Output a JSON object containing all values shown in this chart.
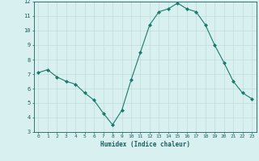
{
  "x": [
    0,
    1,
    2,
    3,
    4,
    5,
    6,
    7,
    8,
    9,
    10,
    11,
    12,
    13,
    14,
    15,
    16,
    17,
    18,
    19,
    20,
    21,
    22,
    23
  ],
  "y": [
    7.1,
    7.3,
    6.8,
    6.5,
    6.3,
    5.7,
    5.2,
    4.3,
    3.5,
    4.5,
    6.6,
    8.5,
    10.4,
    11.3,
    11.5,
    11.9,
    11.5,
    11.3,
    10.4,
    9.0,
    7.8,
    6.5,
    5.7,
    5.3
  ],
  "xlabel": "Humidex (Indice chaleur)",
  "ylim": [
    3,
    12
  ],
  "xlim": [
    -0.5,
    23.5
  ],
  "yticks": [
    3,
    4,
    5,
    6,
    7,
    8,
    9,
    10,
    11,
    12
  ],
  "xticks": [
    0,
    1,
    2,
    3,
    4,
    5,
    6,
    7,
    8,
    9,
    10,
    11,
    12,
    13,
    14,
    15,
    16,
    17,
    18,
    19,
    20,
    21,
    22,
    23
  ],
  "line_color": "#1a7a6e",
  "marker_color": "#1a7a6e",
  "bg_color": "#d9f0f0",
  "grid_color": "#c0dada",
  "xlabel_color": "#1a5f5f",
  "tick_color": "#1a5f5f",
  "axis_color": "#1a5f5f"
}
